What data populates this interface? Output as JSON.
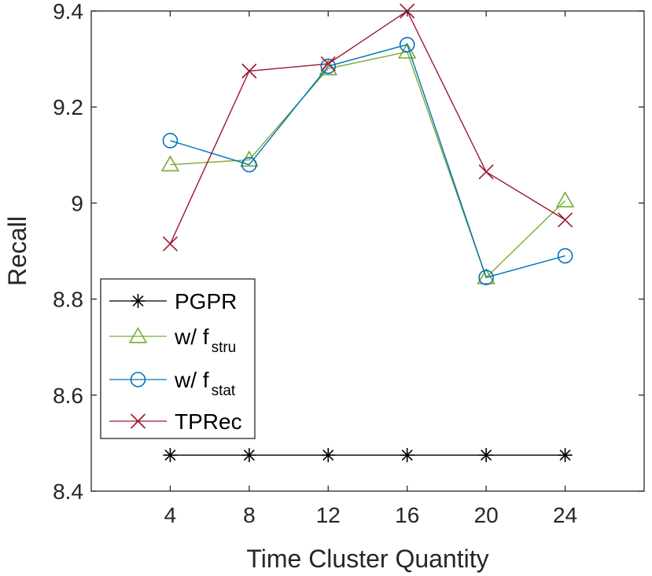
{
  "chart_data": {
    "type": "line",
    "title": "",
    "xlabel": "Time Cluster Quantity",
    "ylabel": "Recall",
    "x": [
      4,
      8,
      12,
      16,
      20,
      24
    ],
    "xticks": [
      "4",
      "8",
      "12",
      "16",
      "20",
      "24"
    ],
    "xlim": [
      0,
      28
    ],
    "ylim": [
      8.4,
      9.4
    ],
    "yticks": [
      "8.4",
      "8.6",
      "8.8",
      "9",
      "9.2",
      "9.4"
    ],
    "grid": false,
    "legend_location": "bottom-left",
    "series": [
      {
        "name": "PGPR",
        "legend_main": "PGPR",
        "legend_sub": "",
        "color": "#000000",
        "marker": "asterisk",
        "values": [
          8.475,
          8.475,
          8.475,
          8.475,
          8.475,
          8.475
        ]
      },
      {
        "name": "w/ f_stru",
        "legend_main": "w/ f",
        "legend_sub": "stru",
        "color": "#77AC30",
        "marker": "triangle",
        "values": [
          9.08,
          9.09,
          9.28,
          9.315,
          8.845,
          9.005
        ]
      },
      {
        "name": "w/ f_stat",
        "legend_main": "w/ f",
        "legend_sub": "stat",
        "color": "#0072BD",
        "marker": "circle",
        "values": [
          9.13,
          9.08,
          9.285,
          9.33,
          8.845,
          8.89
        ]
      },
      {
        "name": "TPRec",
        "legend_main": "TPRec",
        "legend_sub": "",
        "color": "#A2142F",
        "marker": "x",
        "values": [
          8.915,
          9.275,
          9.29,
          9.4,
          9.065,
          8.965
        ]
      }
    ]
  }
}
